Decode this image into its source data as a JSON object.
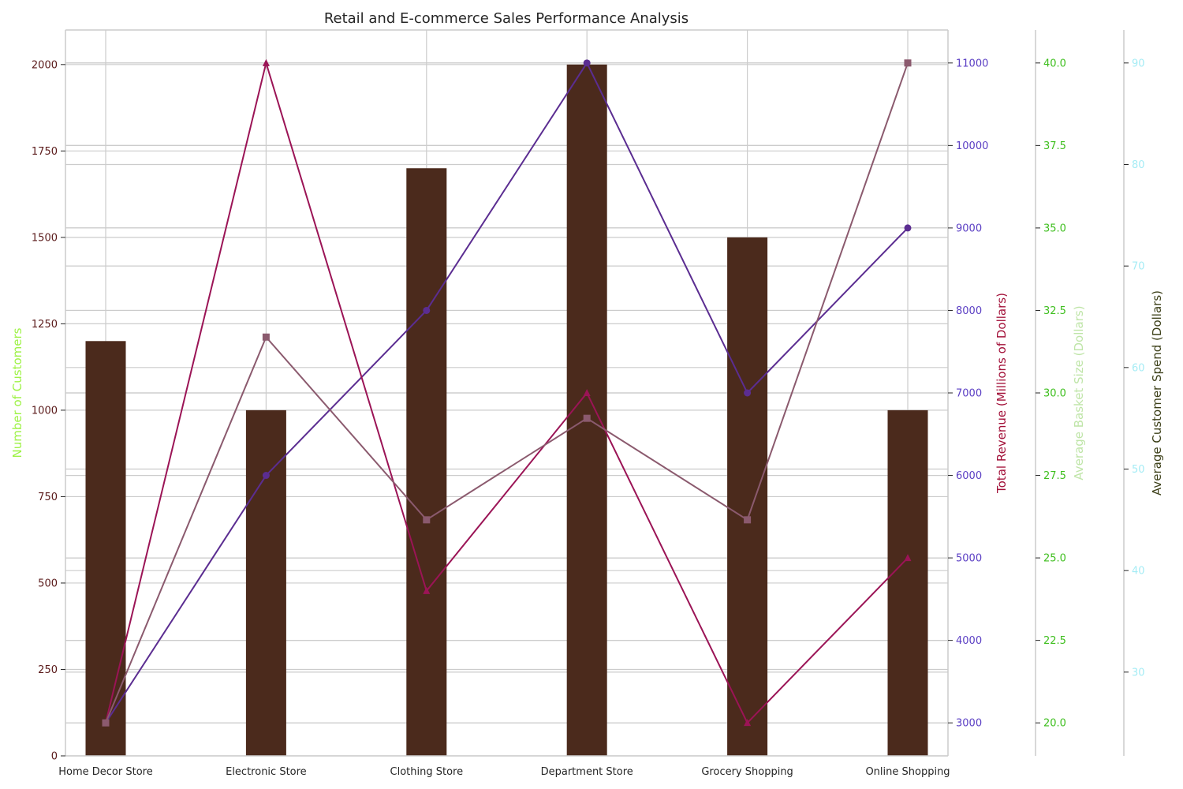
{
  "chart_data": {
    "type": "bar",
    "title": "Retail and E-commerce Sales Performance Analysis",
    "categories": [
      "Home Decor Store",
      "Electronic Store",
      "Clothing Store",
      "Department Store",
      "Grocery Shopping",
      "Online Shopping"
    ],
    "grid": true,
    "series": [
      {
        "name": "Number of Customers",
        "kind": "bar",
        "axis": "customers",
        "color": "#4b2a1c",
        "values": [
          1200,
          1000,
          1700,
          2000,
          1500,
          1000
        ]
      },
      {
        "name": "Total Revenue (Millions of Dollars)",
        "kind": "line",
        "axis": "revenue",
        "marker": "circle",
        "color": "#5b2d91",
        "values": [
          3000,
          6000,
          8000,
          11000,
          7000,
          9000
        ]
      },
      {
        "name": "Average Basket Size (Dollars)",
        "kind": "line",
        "axis": "basket",
        "marker": "triangle",
        "color": "#9b1456",
        "values": [
          20,
          40,
          24,
          30,
          20,
          25
        ]
      },
      {
        "name": "Average Customer Spend (Dollars)",
        "kind": "line",
        "axis": "spend",
        "marker": "square",
        "color": "#8b5a6e",
        "values": [
          25,
          63,
          45,
          55,
          45,
          90
        ]
      }
    ],
    "axes": {
      "customers": {
        "label": "Number of Customers",
        "label_color": "#9ef246",
        "tick_color": "#5a1a1a",
        "ylim": [
          0,
          2100
        ],
        "ticks": [
          0,
          250,
          500,
          750,
          1000,
          1250,
          1500,
          1750,
          2000
        ],
        "tick_labels": [
          "0",
          "250",
          "500",
          "750",
          "1000",
          "1250",
          "1500",
          "1750",
          "2000"
        ]
      },
      "revenue": {
        "label": "Total Revenue (Millions of Dollars)",
        "label_color": "#a3123a",
        "tick_color": "#5b3fc4",
        "ylim": [
          2600,
          11400
        ],
        "ticks": [
          3000,
          4000,
          5000,
          6000,
          7000,
          8000,
          9000,
          10000,
          11000
        ],
        "tick_labels": [
          "3000",
          "4000",
          "5000",
          "6000",
          "7000",
          "8000",
          "9000",
          "10000",
          "11000"
        ]
      },
      "basket": {
        "label": "Average Basket Size (Dollars)",
        "label_color": "#bfe5a8",
        "tick_color": "#3fbf1f",
        "ylim": [
          19,
          41
        ],
        "ticks": [
          20,
          22.5,
          25,
          27.5,
          30,
          32.5,
          35,
          37.5,
          40
        ],
        "tick_labels": [
          "20.0",
          "22.5",
          "25.0",
          "27.5",
          "30.0",
          "32.5",
          "35.0",
          "37.5",
          "40.0"
        ]
      },
      "spend": {
        "label": "Average Customer Spend (Dollars)",
        "label_color": "#3d4019",
        "tick_color": "#a5ecf5",
        "ylim": [
          21.75,
          93.25
        ],
        "ticks": [
          30,
          40,
          50,
          60,
          70,
          80,
          90
        ],
        "tick_labels": [
          "30",
          "40",
          "50",
          "60",
          "70",
          "80",
          "90"
        ]
      }
    }
  }
}
